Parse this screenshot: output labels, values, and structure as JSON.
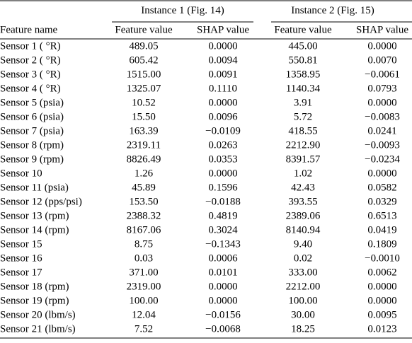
{
  "table": {
    "groups": [
      {
        "prefix": "Instance 1 (Fig. ",
        "figure_ref": "14",
        "suffix": ")"
      },
      {
        "prefix": "Instance 2 (Fig. ",
        "figure_ref": "15",
        "suffix": ")"
      }
    ],
    "columns": [
      "Feature name",
      "Feature value",
      "SHAP value",
      "Feature value",
      "SHAP value"
    ],
    "rows": [
      [
        "Sensor 1 ( °R)",
        "489.05",
        "0.0000",
        "445.00",
        "0.0000"
      ],
      [
        "Sensor 2 ( °R)",
        "605.42",
        "0.0094",
        "550.81",
        "0.0070"
      ],
      [
        "Sensor 3 ( °R)",
        "1515.00",
        "0.0091",
        "1358.95",
        "−0.0061"
      ],
      [
        "Sensor 4 ( °R)",
        "1325.07",
        "0.1110",
        "1140.34",
        "0.0793"
      ],
      [
        "Sensor 5 (psia)",
        "10.52",
        "0.0000",
        "3.91",
        "0.0000"
      ],
      [
        "Sensor 6 (psia)",
        "15.50",
        "0.0096",
        "5.72",
        "−0.0083"
      ],
      [
        "Sensor 7 (psia)",
        "163.39",
        "−0.0109",
        "418.55",
        "0.0241"
      ],
      [
        "Sensor 8 (rpm)",
        "2319.11",
        "0.0263",
        "2212.90",
        "−0.0093"
      ],
      [
        "Sensor 9 (rpm)",
        "8826.49",
        "0.0353",
        "8391.57",
        "−0.0234"
      ],
      [
        "Sensor 10",
        "1.26",
        "0.0000",
        "1.02",
        "0.0000"
      ],
      [
        "Sensor 11 (psia)",
        "45.89",
        "0.1596",
        "42.43",
        "0.0582"
      ],
      [
        "Sensor 12 (pps/psi)",
        "153.50",
        "−0.0188",
        "393.55",
        "0.0329"
      ],
      [
        "Sensor 13 (rpm)",
        "2388.32",
        "0.4819",
        "2389.06",
        "0.6513"
      ],
      [
        "Sensor 14 (rpm)",
        "8167.06",
        "0.3024",
        "8140.94",
        "0.0419"
      ],
      [
        "Sensor 15",
        "8.75",
        "−0.1343",
        "9.40",
        "0.1809"
      ],
      [
        "Sensor 16",
        "0.03",
        "0.0006",
        "0.02",
        "−0.0010"
      ],
      [
        "Sensor 17",
        "371.00",
        "0.0101",
        "333.00",
        "0.0062"
      ],
      [
        "Sensor 18 (rpm)",
        "2319.00",
        "0.0000",
        "2212.00",
        "0.0000"
      ],
      [
        "Sensor 19 (rpm)",
        "100.00",
        "0.0000",
        "100.00",
        "0.0000"
      ],
      [
        "Sensor 20 (lbm/s)",
        "12.04",
        "−0.0156",
        "30.00",
        "0.0095"
      ],
      [
        "Sensor 21 (lbm/s)",
        "7.52",
        "−0.0068",
        "18.25",
        "0.0123"
      ]
    ]
  }
}
